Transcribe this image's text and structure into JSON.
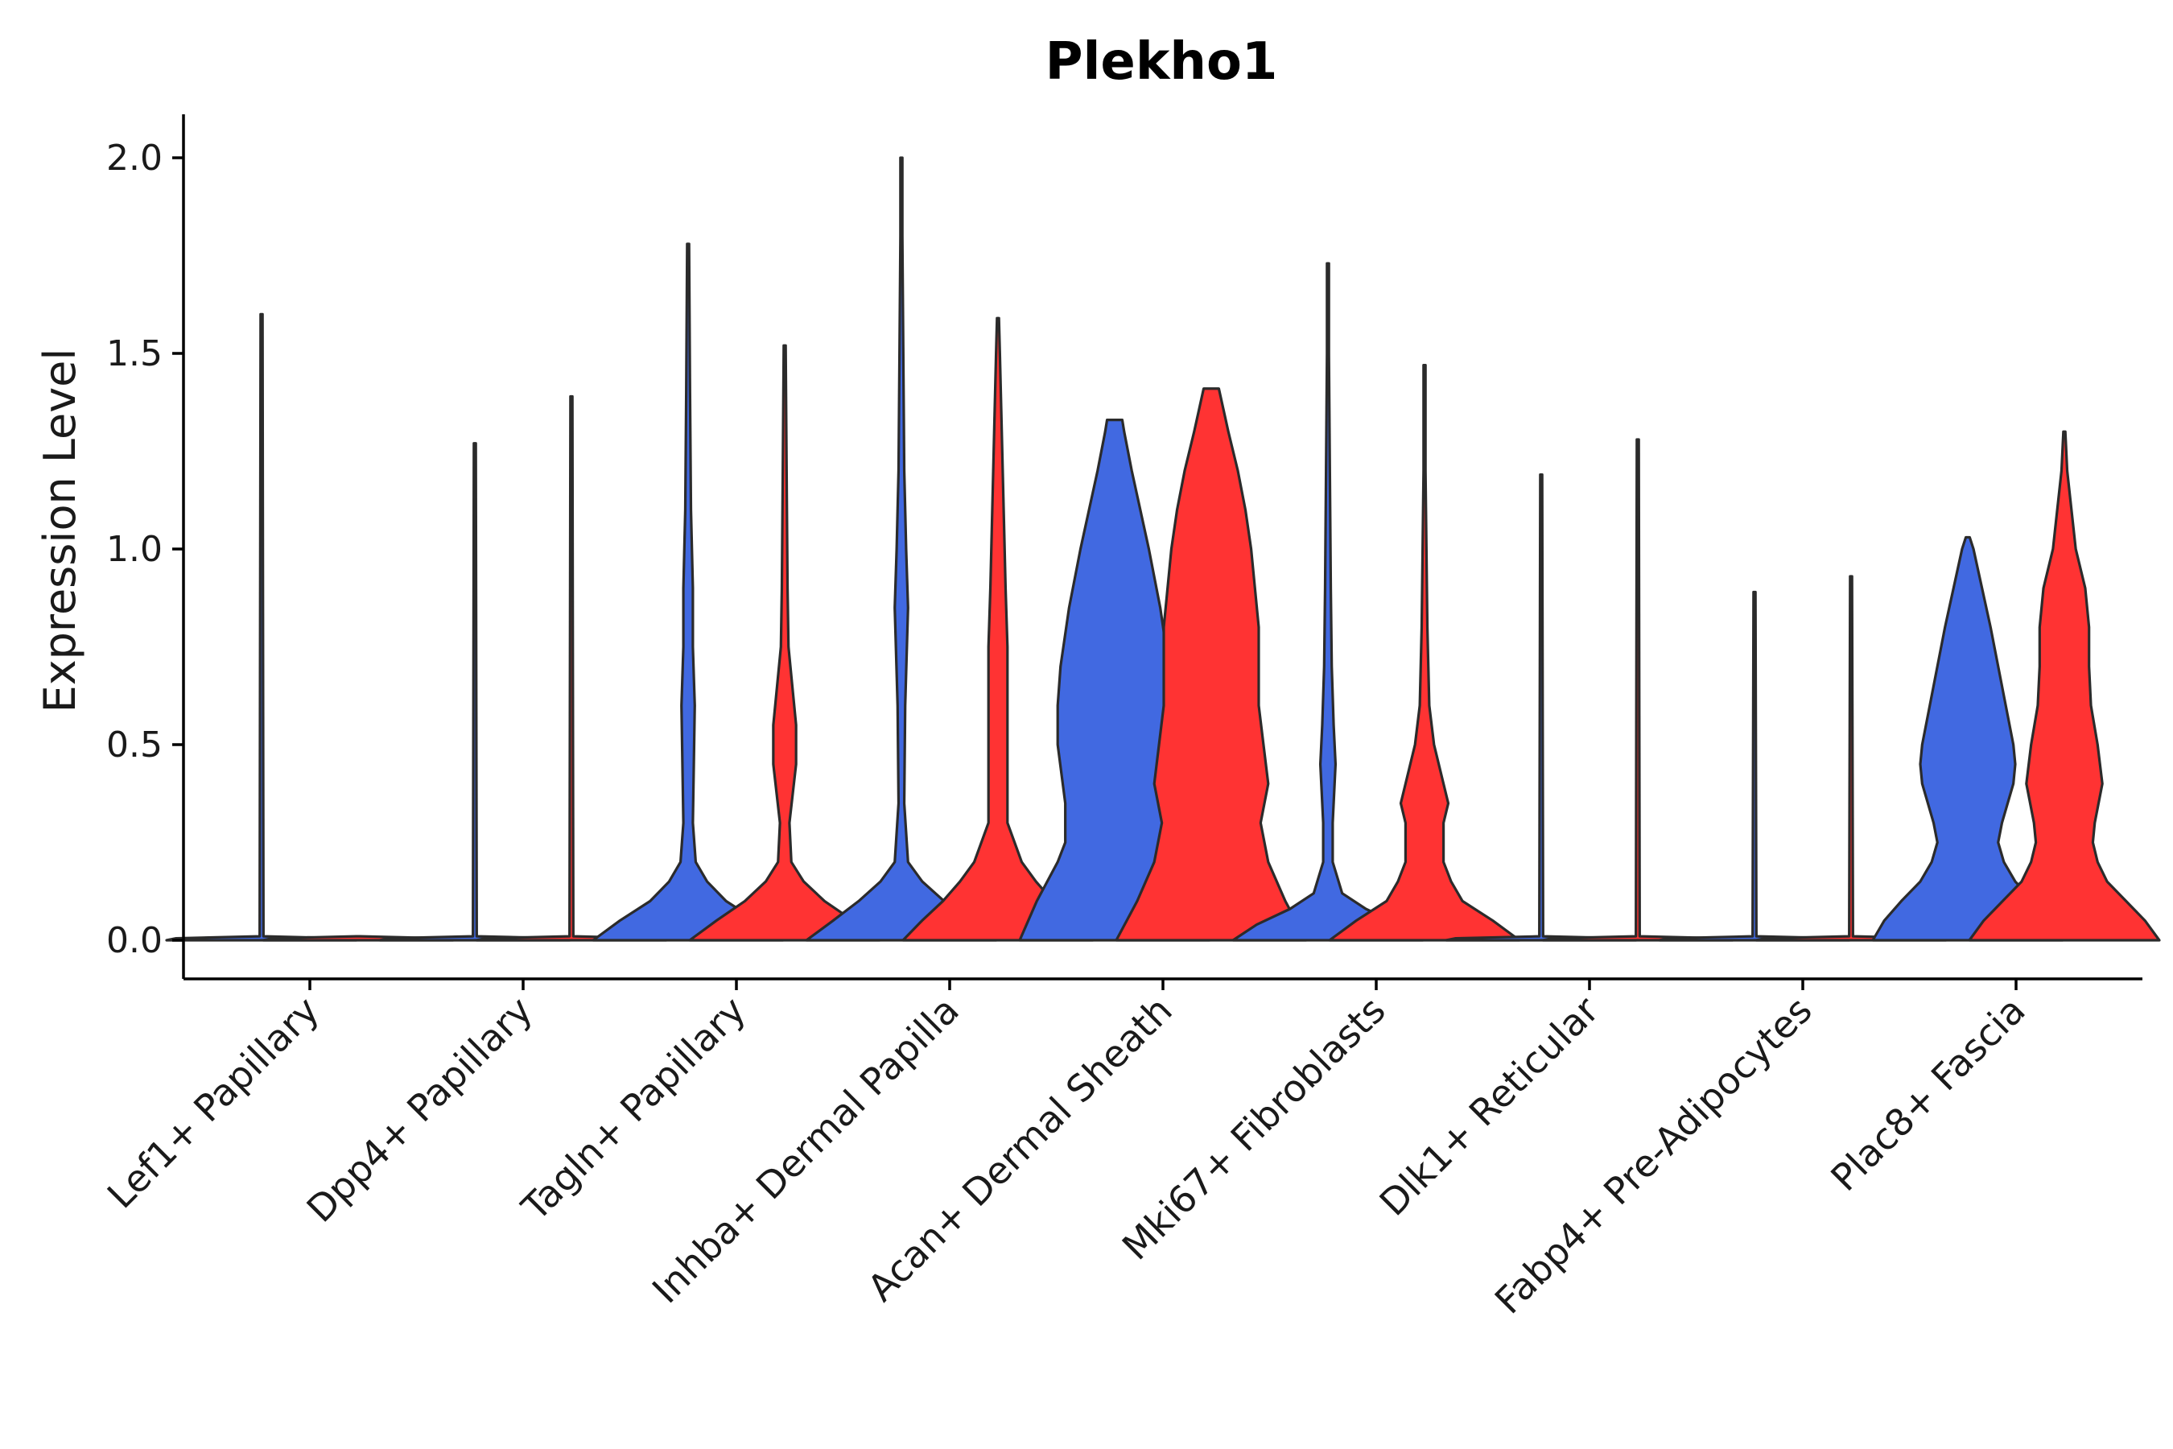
{
  "chart_data": {
    "type": "violin",
    "title": "Plekho1",
    "xlabel": "",
    "ylabel": "Expression Level",
    "ylim": [
      -0.1,
      2.1
    ],
    "yticks": [
      0.0,
      0.5,
      1.0,
      1.5,
      2.0
    ],
    "ytick_labels": [
      "0.0",
      "0.5",
      "1.0",
      "1.5",
      "2.0"
    ],
    "grid": false,
    "legend": "none",
    "colors": {
      "group_a": "#4169E1",
      "group_b": "#FF3333",
      "outline": "#2b2b2b"
    },
    "categories": [
      "Lef1+ Papillary",
      "Dpp4+ Papillary",
      "Tagln+ Papillary",
      "Inhba+ Dermal Papilla",
      "Acan+ Dermal Sheath",
      "Mki67+ Fibroblasts",
      "Dlk1+ Reticular",
      "Fabp4+ Pre-Adipocytes",
      "Plac8+ Fascia"
    ],
    "series": [
      {
        "name": "group_a",
        "color": "#4169E1",
        "violins": [
          {
            "max": 1.6,
            "profile": [
              [
                0,
                1
              ],
              [
                0.005,
                0.9
              ],
              [
                0.01,
                0.02
              ],
              [
                1.6,
                0.005
              ]
            ]
          },
          {
            "max": 1.27,
            "profile": [
              [
                0,
                1
              ],
              [
                0.005,
                0.9
              ],
              [
                0.01,
                0.02
              ],
              [
                1.27,
                0.005
              ]
            ]
          },
          {
            "max": 1.78,
            "profile": [
              [
                0,
                1
              ],
              [
                0.05,
                0.72
              ],
              [
                0.1,
                0.4
              ],
              [
                0.15,
                0.2
              ],
              [
                0.2,
                0.08
              ],
              [
                0.3,
                0.05
              ],
              [
                0.45,
                0.06
              ],
              [
                0.6,
                0.07
              ],
              [
                0.75,
                0.05
              ],
              [
                0.9,
                0.05
              ],
              [
                1.1,
                0.03
              ],
              [
                1.4,
                0.02
              ],
              [
                1.78,
                0.005
              ]
            ]
          },
          {
            "max": 2.0,
            "profile": [
              [
                0,
                1
              ],
              [
                0.05,
                0.72
              ],
              [
                0.1,
                0.45
              ],
              [
                0.15,
                0.22
              ],
              [
                0.2,
                0.07
              ],
              [
                0.35,
                0.03
              ],
              [
                0.6,
                0.04
              ],
              [
                0.85,
                0.07
              ],
              [
                1.0,
                0.05
              ],
              [
                1.2,
                0.03
              ],
              [
                1.5,
                0.02
              ],
              [
                1.8,
                0.01
              ],
              [
                2.0,
                0.005
              ]
            ]
          },
          {
            "max": 1.33,
            "profile": [
              [
                0,
                1
              ],
              [
                0.1,
                0.82
              ],
              [
                0.2,
                0.6
              ],
              [
                0.25,
                0.52
              ],
              [
                0.35,
                0.52
              ],
              [
                0.5,
                0.6
              ],
              [
                0.6,
                0.6
              ],
              [
                0.7,
                0.57
              ],
              [
                0.85,
                0.48
              ],
              [
                1.0,
                0.36
              ],
              [
                1.1,
                0.27
              ],
              [
                1.2,
                0.18
              ],
              [
                1.3,
                0.1
              ],
              [
                1.33,
                0.08
              ]
            ]
          },
          {
            "max": 1.73,
            "profile": [
              [
                0,
                1
              ],
              [
                0.04,
                0.75
              ],
              [
                0.08,
                0.4
              ],
              [
                0.12,
                0.15
              ],
              [
                0.2,
                0.05
              ],
              [
                0.3,
                0.05
              ],
              [
                0.45,
                0.08
              ],
              [
                0.55,
                0.06
              ],
              [
                0.7,
                0.04
              ],
              [
                0.9,
                0.03
              ],
              [
                1.2,
                0.02
              ],
              [
                1.5,
                0.01
              ],
              [
                1.73,
                0.005
              ]
            ]
          },
          {
            "max": 1.19,
            "profile": [
              [
                0,
                1
              ],
              [
                0.005,
                0.9
              ],
              [
                0.01,
                0.02
              ],
              [
                1.19,
                0.005
              ]
            ]
          },
          {
            "max": 0.89,
            "profile": [
              [
                0,
                1
              ],
              [
                0.005,
                0.9
              ],
              [
                0.01,
                0.02
              ],
              [
                0.89,
                0.005
              ]
            ]
          },
          {
            "max": 1.03,
            "profile": [
              [
                0,
                1
              ],
              [
                0.05,
                0.88
              ],
              [
                0.1,
                0.7
              ],
              [
                0.15,
                0.5
              ],
              [
                0.2,
                0.38
              ],
              [
                0.25,
                0.32
              ],
              [
                0.3,
                0.36
              ],
              [
                0.4,
                0.48
              ],
              [
                0.45,
                0.5
              ],
              [
                0.5,
                0.48
              ],
              [
                0.6,
                0.4
              ],
              [
                0.7,
                0.32
              ],
              [
                0.8,
                0.24
              ],
              [
                0.9,
                0.15
              ],
              [
                1.0,
                0.06
              ],
              [
                1.03,
                0.02
              ]
            ]
          }
        ]
      },
      {
        "name": "group_b",
        "color": "#FF3333",
        "violins": [
          {
            "max": 0.0,
            "profile": [
              [
                0,
                1
              ],
              [
                0.005,
                0.9
              ],
              [
                0.01,
                0.02
              ]
            ]
          },
          {
            "max": 1.39,
            "profile": [
              [
                0,
                1
              ],
              [
                0.005,
                0.9
              ],
              [
                0.01,
                0.02
              ],
              [
                1.39,
                0.005
              ]
            ]
          },
          {
            "max": 1.52,
            "profile": [
              [
                0,
                1
              ],
              [
                0.05,
                0.72
              ],
              [
                0.1,
                0.42
              ],
              [
                0.15,
                0.2
              ],
              [
                0.2,
                0.07
              ],
              [
                0.3,
                0.05
              ],
              [
                0.45,
                0.12
              ],
              [
                0.55,
                0.12
              ],
              [
                0.65,
                0.08
              ],
              [
                0.75,
                0.04
              ],
              [
                0.9,
                0.03
              ],
              [
                1.2,
                0.02
              ],
              [
                1.52,
                0.005
              ]
            ]
          },
          {
            "max": 1.59,
            "profile": [
              [
                0,
                1
              ],
              [
                0.05,
                0.8
              ],
              [
                0.1,
                0.58
              ],
              [
                0.15,
                0.4
              ],
              [
                0.2,
                0.25
              ],
              [
                0.3,
                0.1
              ],
              [
                0.45,
                0.1
              ],
              [
                0.6,
                0.1
              ],
              [
                0.75,
                0.1
              ],
              [
                0.9,
                0.08
              ],
              [
                1.1,
                0.06
              ],
              [
                1.3,
                0.04
              ],
              [
                1.5,
                0.02
              ],
              [
                1.59,
                0.005
              ]
            ]
          },
          {
            "max": 1.41,
            "profile": [
              [
                0,
                1
              ],
              [
                0.1,
                0.78
              ],
              [
                0.2,
                0.6
              ],
              [
                0.3,
                0.52
              ],
              [
                0.4,
                0.6
              ],
              [
                0.5,
                0.55
              ],
              [
                0.6,
                0.5
              ],
              [
                0.7,
                0.5
              ],
              [
                0.8,
                0.5
              ],
              [
                0.9,
                0.46
              ],
              [
                1.0,
                0.42
              ],
              [
                1.1,
                0.36
              ],
              [
                1.2,
                0.28
              ],
              [
                1.3,
                0.18
              ],
              [
                1.41,
                0.08
              ]
            ]
          },
          {
            "max": 1.47,
            "profile": [
              [
                0,
                1
              ],
              [
                0.05,
                0.72
              ],
              [
                0.1,
                0.4
              ],
              [
                0.15,
                0.28
              ],
              [
                0.2,
                0.2
              ],
              [
                0.3,
                0.2
              ],
              [
                0.35,
                0.25
              ],
              [
                0.4,
                0.2
              ],
              [
                0.5,
                0.1
              ],
              [
                0.6,
                0.05
              ],
              [
                0.8,
                0.03
              ],
              [
                1.0,
                0.02
              ],
              [
                1.2,
                0.01
              ],
              [
                1.47,
                0.005
              ]
            ]
          },
          {
            "max": 1.28,
            "profile": [
              [
                0,
                1
              ],
              [
                0.005,
                0.9
              ],
              [
                0.01,
                0.02
              ],
              [
                1.28,
                0.005
              ]
            ]
          },
          {
            "max": 0.93,
            "profile": [
              [
                0,
                1
              ],
              [
                0.005,
                0.9
              ],
              [
                0.01,
                0.02
              ],
              [
                0.93,
                0.005
              ]
            ]
          },
          {
            "max": 1.3,
            "profile": [
              [
                0,
                1
              ],
              [
                0.05,
                0.85
              ],
              [
                0.1,
                0.65
              ],
              [
                0.15,
                0.45
              ],
              [
                0.2,
                0.35
              ],
              [
                0.25,
                0.3
              ],
              [
                0.3,
                0.32
              ],
              [
                0.4,
                0.4
              ],
              [
                0.5,
                0.35
              ],
              [
                0.6,
                0.28
              ],
              [
                0.7,
                0.26
              ],
              [
                0.8,
                0.26
              ],
              [
                0.9,
                0.22
              ],
              [
                1.0,
                0.12
              ],
              [
                1.2,
                0.03
              ],
              [
                1.3,
                0.005
              ]
            ]
          }
        ]
      }
    ]
  }
}
